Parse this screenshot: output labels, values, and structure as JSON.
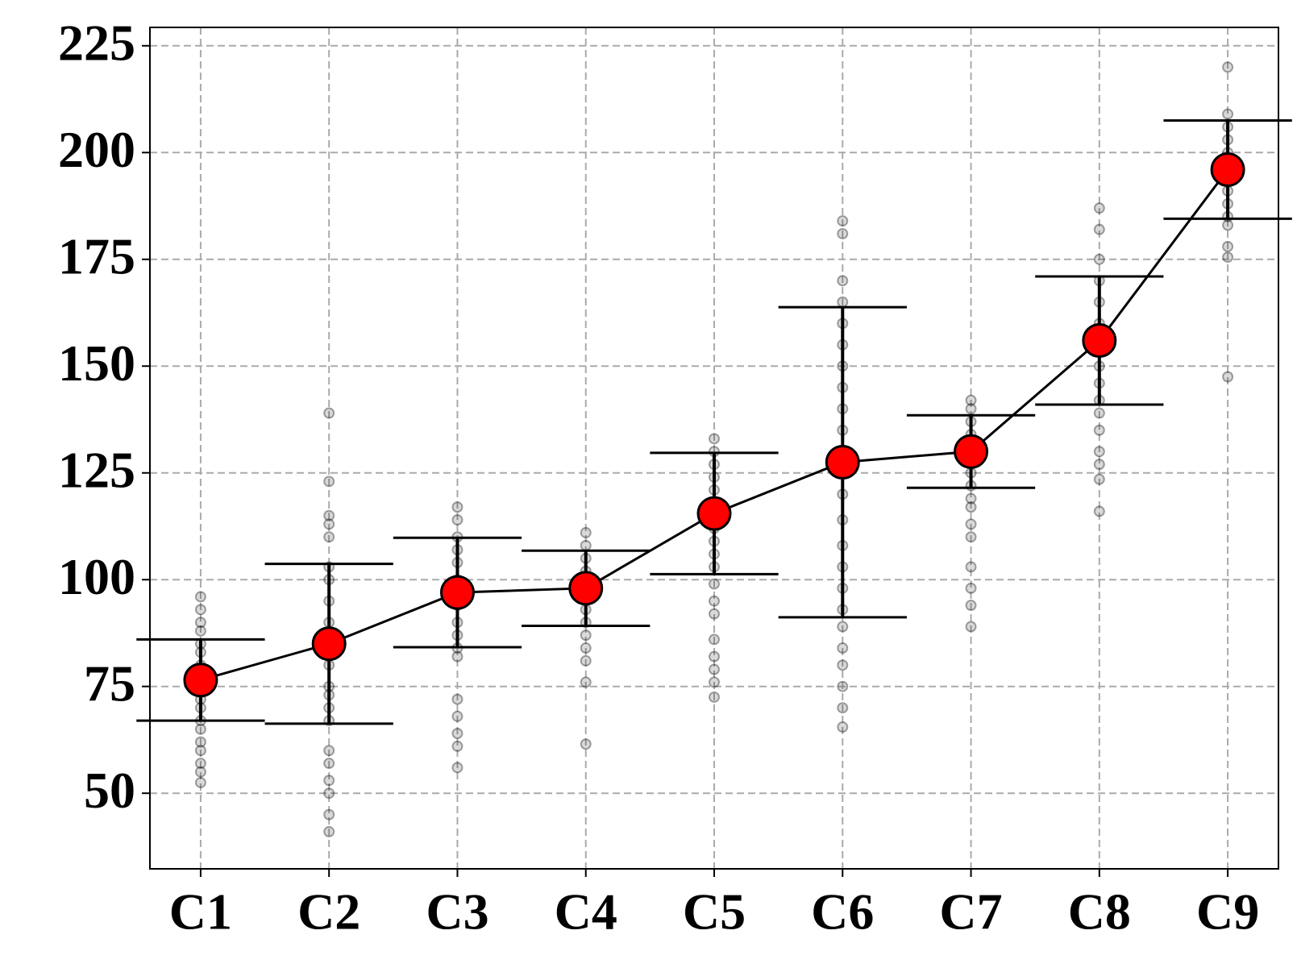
{
  "chart_data": {
    "type": "errorbar",
    "categories": [
      "C1",
      "C2",
      "C3",
      "C4",
      "C5",
      "C6",
      "C7",
      "C8",
      "C9"
    ],
    "values": [
      76.5,
      85,
      97,
      98,
      115.5,
      127.5,
      130,
      156,
      196
    ],
    "errors": [
      9.5,
      18.7,
      12.8,
      8.8,
      14.2,
      36.3,
      8.5,
      15,
      11.5
    ],
    "samples": [
      [
        96,
        93,
        90,
        88,
        85,
        83,
        80,
        78,
        76,
        74,
        72,
        70,
        67,
        65,
        62,
        60,
        57,
        55,
        52.5
      ],
      [
        139,
        123,
        115,
        113,
        110,
        103,
        100,
        95,
        90,
        85,
        80,
        75,
        73,
        70,
        67,
        60,
        57,
        53,
        50,
        45,
        41
      ],
      [
        117,
        114,
        110,
        107,
        104,
        100,
        97,
        94,
        90,
        87,
        84,
        82,
        72,
        68,
        64,
        61,
        56
      ],
      [
        111,
        108,
        105,
        102,
        99,
        96,
        93,
        90,
        87,
        84,
        81,
        76,
        61.5
      ],
      [
        133,
        130,
        127,
        124,
        121,
        118,
        115,
        112,
        109,
        106,
        103,
        99,
        95,
        92,
        86,
        82,
        79,
        76,
        72.5
      ],
      [
        184,
        181,
        170,
        165,
        160,
        155,
        150,
        145,
        140,
        135,
        130,
        125,
        120,
        114,
        108,
        103,
        98,
        93,
        89,
        84,
        80,
        75,
        70,
        65.5
      ],
      [
        142,
        140,
        137,
        134,
        131,
        128,
        125,
        122,
        119,
        117,
        113,
        110,
        103,
        98,
        94,
        89
      ],
      [
        187,
        182,
        175,
        170,
        165,
        160,
        155,
        150,
        146,
        142,
        139,
        135,
        130,
        127,
        123.5,
        116
      ],
      [
        220,
        209,
        206,
        203,
        200,
        197,
        194,
        191,
        188,
        185,
        183,
        178,
        175.5,
        147.5
      ]
    ],
    "color": "#ff0000",
    "line_color": "#000000",
    "sample_color": "#000000",
    "ylim": [
      32.3,
      229.3
    ],
    "yticks": [
      50,
      75,
      100,
      125,
      150,
      175,
      200,
      225
    ],
    "grid": true
  }
}
